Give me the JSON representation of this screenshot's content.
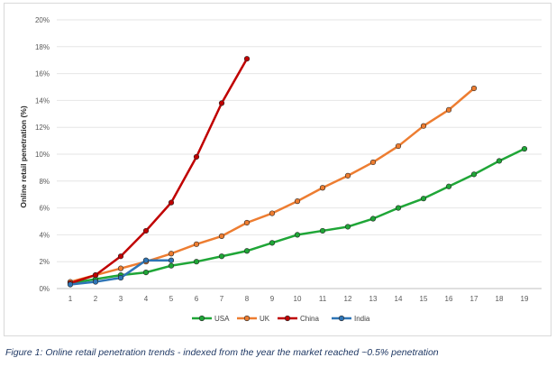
{
  "caption": "Figure 1: Online retail penetration trends - indexed from the year the market reached ~0.5% penetration",
  "chart_data": {
    "type": "line",
    "title": "",
    "xlabel": "",
    "ylabel": "Online retail penetration (%)",
    "x": [
      1,
      2,
      3,
      4,
      5,
      6,
      7,
      8,
      9,
      10,
      11,
      12,
      13,
      14,
      15,
      16,
      17,
      18,
      19
    ],
    "xlim": [
      1,
      19
    ],
    "ylim": [
      0,
      20
    ],
    "yticks": [
      0,
      2,
      4,
      6,
      8,
      10,
      12,
      14,
      16,
      18,
      20
    ],
    "ytick_labels": [
      "0%",
      "2%",
      "4%",
      "6%",
      "8%",
      "10%",
      "12%",
      "14%",
      "16%",
      "18%",
      "20%"
    ],
    "grid": true,
    "legend": "bottom",
    "series": [
      {
        "name": "USA",
        "color": "#1fa637",
        "marker": "circle",
        "x": [
          1,
          2,
          3,
          4,
          5,
          6,
          7,
          8,
          9,
          10,
          11,
          12,
          13,
          14,
          15,
          16,
          17,
          18,
          19
        ],
        "values": [
          0.4,
          0.7,
          1.0,
          1.2,
          1.7,
          2.0,
          2.4,
          2.8,
          3.4,
          4.0,
          4.3,
          4.6,
          5.2,
          6.0,
          6.7,
          7.6,
          8.5,
          9.5,
          10.4
        ]
      },
      {
        "name": "UK",
        "color": "#ed7d31",
        "marker": "circle",
        "x": [
          1,
          2,
          3,
          4,
          5,
          6,
          7,
          8,
          9,
          10,
          11,
          12,
          13,
          14,
          15,
          16,
          17
        ],
        "values": [
          0.5,
          1.0,
          1.5,
          2.0,
          2.6,
          3.3,
          3.9,
          4.9,
          5.6,
          6.5,
          7.5,
          8.4,
          9.4,
          10.6,
          12.1,
          13.3,
          14.9
        ]
      },
      {
        "name": "China",
        "color": "#c00000",
        "marker": "circle",
        "x": [
          1,
          2,
          3,
          4,
          5,
          6,
          7,
          8
        ],
        "values": [
          0.4,
          1.0,
          2.4,
          4.3,
          6.4,
          9.8,
          13.8,
          17.1
        ]
      },
      {
        "name": "India",
        "color": "#2e75b6",
        "marker": "circle",
        "x": [
          1,
          2,
          3,
          4,
          5
        ],
        "values": [
          0.3,
          0.5,
          0.8,
          2.1,
          2.1
        ]
      }
    ]
  }
}
